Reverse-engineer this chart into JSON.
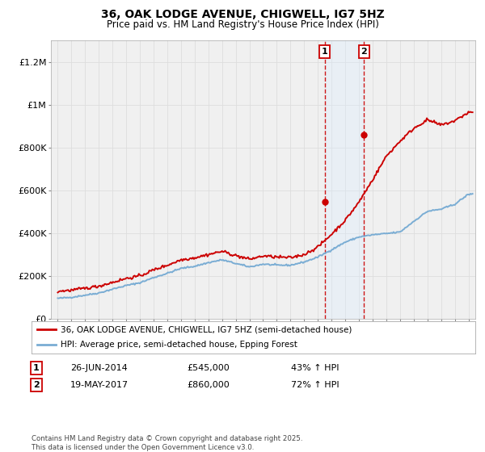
{
  "title": "36, OAK LODGE AVENUE, CHIGWELL, IG7 5HZ",
  "subtitle": "Price paid vs. HM Land Registry's House Price Index (HPI)",
  "legend_line1": "36, OAK LODGE AVENUE, CHIGWELL, IG7 5HZ (semi-detached house)",
  "legend_line2": "HPI: Average price, semi-detached house, Epping Forest",
  "footnote": "Contains HM Land Registry data © Crown copyright and database right 2025.\nThis data is licensed under the Open Government Licence v3.0.",
  "transaction1_date": "26-JUN-2014",
  "transaction1_price": "£545,000",
  "transaction1_pct": "43% ↑ HPI",
  "transaction1_year": 2014.49,
  "transaction1_value": 545000,
  "transaction2_date": "19-MAY-2017",
  "transaction2_price": "£860,000",
  "transaction2_pct": "72% ↑ HPI",
  "transaction2_year": 2017.38,
  "transaction2_value": 860000,
  "red_color": "#cc0000",
  "blue_color": "#7aadd4",
  "shading_color": "#ddeeff",
  "background_color": "#f0f0f0",
  "grid_color": "#dddddd",
  "ylim_max": 1300000,
  "xlim_min": 1994.5,
  "xlim_max": 2025.5
}
